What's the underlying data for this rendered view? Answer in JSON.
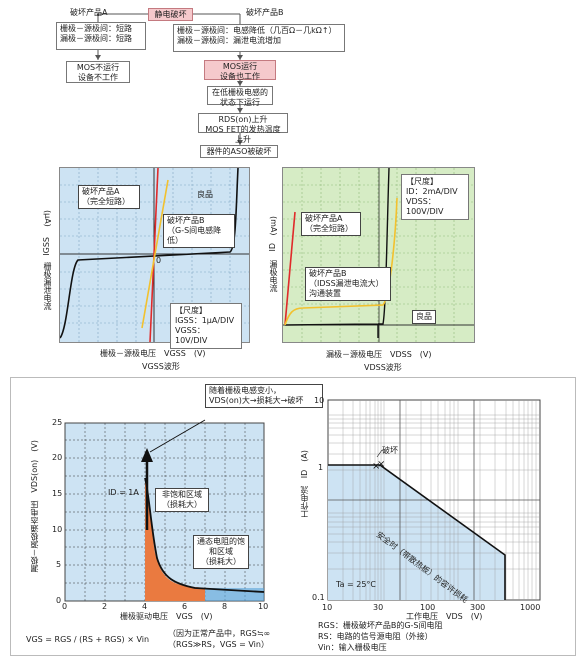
{
  "flow": {
    "top": "静电破坏",
    "left_branch": "破坏产品A",
    "right_branch": "破坏产品B",
    "left_box": [
      "栅极－源极间：短路",
      "漏极－源极间：短路"
    ],
    "left_result": [
      "MOS不运行",
      "设备不工作"
    ],
    "right_box": [
      "栅极－源极间：电感降低（几百Ω－几kΩ↑）",
      "漏极－源极间：漏泄电流增加"
    ],
    "right_pink": [
      "MOS运行",
      "设备也工作"
    ],
    "step3": [
      "在低栅极电感的",
      "状态下运行"
    ],
    "step4": [
      "RDS(on)上升",
      "MOS FET的发热温度上升"
    ],
    "step5": "器件的ASO被破坏"
  },
  "panel1": {
    "ylabel_unit": "(μA)",
    "ylabel_sym": "IGSS",
    "ylabel_cn": "栅极漏泄电流",
    "xlabel": "栅极－源极电压　VGSS　(V)",
    "caption": "VGSS波形",
    "origin": "0",
    "label_a": [
      "破坏产品A",
      "（完全短路）"
    ],
    "label_b": [
      "破坏产品B",
      "（G-S间电感降低）"
    ],
    "label_good": "良品",
    "scale_title": "【尺度】",
    "scale_1": "IGSS：1μA/DIV",
    "scale_2": "VGSS：10V/DIV"
  },
  "panel2": {
    "ylabel_unit": "(mA)",
    "ylabel_sym": "ID",
    "ylabel_cn": "漏极电流",
    "xlabel": "漏极－源极电压　VDSS　(V)",
    "caption": "VDSS波形",
    "scale_title": "【尺度】",
    "scale_1": "ID：2mA/DIV",
    "scale_2": "VDSS：100V/DIV",
    "label_a": [
      "破坏产品A",
      "（完全短路）"
    ],
    "label_b": [
      "破坏产品B",
      "（IDSS漏泄电流大）",
      "沟通装置"
    ],
    "label_good": "良品"
  },
  "panel3": {
    "y_ticks": [
      "0",
      "5",
      "10",
      "15",
      "20",
      "25"
    ],
    "x_ticks": [
      "0",
      "2",
      "4",
      "6",
      "8",
      "10"
    ],
    "ylabel": "漏极－源极通态电压　VDS(on)　(V)",
    "xlabel": "栅极驱动电压　VGS　(V)",
    "id_label": "ID = 1A",
    "callout_top": [
      "随着栅极电感变小，",
      "VDS(on)大→损耗大→破坏"
    ],
    "region1": [
      "非饱和区域",
      "（损耗大）"
    ],
    "region2": [
      "通态电阻的饱",
      "和区域",
      "（损耗大）"
    ],
    "formula": "VGS = RGS / (RS + RGS) × Vin",
    "formula_note": [
      "（因为正常产品中，RGS≒∞",
      "（RGS≫RS，VGS = Vin）"
    ]
  },
  "panel4": {
    "y_ticks": [
      "10",
      "1",
      "0.1"
    ],
    "x_ticks": [
      "10",
      "30",
      "100",
      "300",
      "1000"
    ],
    "ylabel": "工作电流　ID　(A)",
    "xlabel": "工作电压　VDS　(V)",
    "break_label": "破坏",
    "aso_label": "安全时（带散热板）的容许损耗",
    "ta_label": "Ta = 25°C",
    "legend": [
      "RGS：栅极破坏产品B的G-S间电阻",
      "RS：电路的信号源电阻（外接）",
      "Vin：输入栅极电压"
    ]
  },
  "colors": {
    "panel_blue": "#cde3f3",
    "panel_green": "#d6ecc5",
    "pink": "#f5c9cc",
    "orange": "#ea7a40",
    "red": "#e02a2a",
    "yellow": "#f2c12e"
  }
}
